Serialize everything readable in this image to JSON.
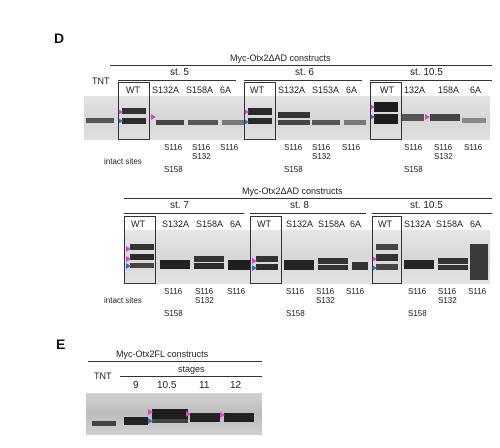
{
  "panelD": {
    "letter": "D",
    "top": {
      "construct_title": "Myc-Otx2ΔAD constructs",
      "tnt_label": "TNT",
      "stages": [
        "st. 5",
        "st. 6",
        "st. 10.5"
      ],
      "lanes": [
        [
          "WT",
          "S132A",
          "S158A",
          "6A"
        ],
        [
          "WT",
          "S132A",
          "S153A",
          "6A"
        ],
        [
          "WT",
          "132A",
          "158A",
          "6A"
        ]
      ],
      "intact_label": "intact sites",
      "sites": [
        [
          [
            "S116",
            "S158"
          ],
          [
            "S116",
            "S132"
          ],
          [
            "S116"
          ]
        ],
        [
          [
            "S116",
            "S158"
          ],
          [
            "S116",
            "S132"
          ],
          [
            "S116"
          ]
        ],
        [
          [
            "S116",
            "S158"
          ],
          [
            "S116",
            "S132"
          ],
          [
            "S116"
          ]
        ]
      ]
    },
    "bottom": {
      "construct_title": "Myc-Otx2ΔAD constructs",
      "stages": [
        "st. 7",
        "st. 8",
        "st. 10.5"
      ],
      "lanes": [
        [
          "WT",
          "S132A",
          "S158A",
          "6A"
        ],
        [
          "WT",
          "S132A",
          "S158A",
          "6A"
        ],
        [
          "WT",
          "S132A",
          "S158A",
          "6A"
        ]
      ],
      "intact_label": "intact sites",
      "sites": [
        [
          [
            "S116",
            "S158"
          ],
          [
            "S116",
            "S132"
          ],
          [
            "S116"
          ]
        ],
        [
          [
            "S116",
            "S158"
          ],
          [
            "S116",
            "S132"
          ],
          [
            "S116"
          ]
        ],
        [
          [
            "S116",
            "S158"
          ],
          [
            "S116",
            "S132"
          ],
          [
            "S116"
          ]
        ]
      ]
    }
  },
  "panelE": {
    "letter": "E",
    "construct_title": "Myc-Otx2FL constructs",
    "stages_label": "stages",
    "tnt_label": "TNT",
    "stages": [
      "9",
      "10.5",
      "11",
      "12"
    ]
  },
  "colors": {
    "marker_magenta": "#e040d0",
    "marker_blue": "#2a6fd6",
    "blot_bg": "#d9d9d9",
    "band": "#2b2b2b"
  }
}
